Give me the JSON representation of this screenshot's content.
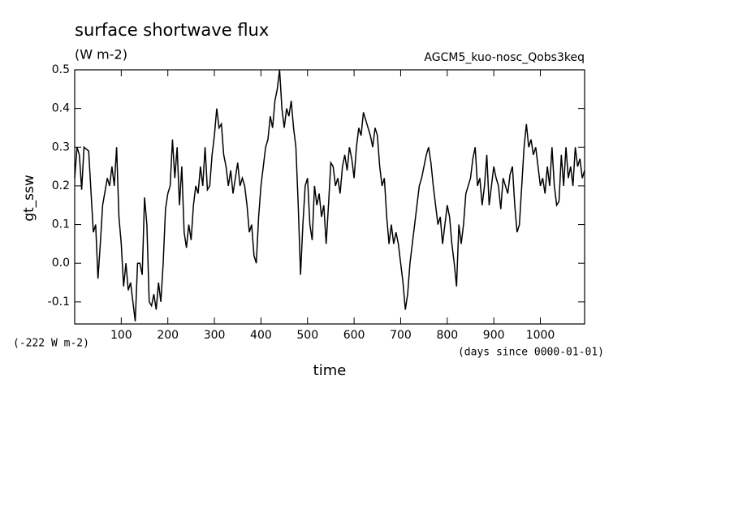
{
  "chart_data": {
    "type": "line",
    "title": "surface shortwave flux",
    "subtitle": "(W m-2)",
    "annotation": "AGCM5_kuo-nosc_Qobs3keq",
    "ylabel": "gt_ssw",
    "xlabel": "time",
    "offset_label": "(-222 W m-2)",
    "x_units_label": "(days since 0000-01-01)",
    "color": "#000000",
    "xlim": [
      0,
      1095
    ],
    "ylim": [
      -0.157,
      0.5
    ],
    "xticks": [
      100,
      200,
      300,
      400,
      500,
      600,
      700,
      800,
      900,
      1000
    ],
    "yticks": [
      -0.1,
      {
        "value": 0,
        "label": "0.0"
      },
      0.1,
      0.2,
      0.3,
      0.4,
      0.5
    ],
    "x": [
      0,
      5,
      10,
      15,
      20,
      30,
      40,
      45,
      50,
      55,
      60,
      70,
      75,
      80,
      85,
      90,
      95,
      100,
      105,
      110,
      115,
      120,
      125,
      130,
      135,
      140,
      145,
      150,
      155,
      160,
      165,
      170,
      175,
      180,
      185,
      190,
      195,
      200,
      205,
      210,
      215,
      220,
      225,
      230,
      235,
      240,
      245,
      250,
      255,
      260,
      265,
      270,
      275,
      280,
      285,
      290,
      295,
      300,
      305,
      310,
      315,
      320,
      325,
      330,
      335,
      340,
      345,
      350,
      355,
      360,
      365,
      370,
      375,
      380,
      385,
      390,
      395,
      400,
      405,
      410,
      415,
      420,
      425,
      430,
      435,
      440,
      445,
      450,
      455,
      460,
      465,
      470,
      475,
      480,
      485,
      490,
      495,
      500,
      505,
      510,
      515,
      520,
      525,
      530,
      535,
      540,
      545,
      550,
      555,
      560,
      565,
      570,
      575,
      580,
      585,
      590,
      595,
      600,
      605,
      610,
      615,
      620,
      625,
      630,
      635,
      640,
      645,
      650,
      655,
      660,
      665,
      670,
      675,
      680,
      685,
      690,
      695,
      700,
      705,
      710,
      715,
      720,
      725,
      730,
      735,
      740,
      745,
      750,
      755,
      760,
      765,
      770,
      775,
      780,
      785,
      790,
      795,
      800,
      805,
      810,
      815,
      820,
      825,
      830,
      835,
      840,
      845,
      850,
      855,
      860,
      865,
      870,
      875,
      880,
      885,
      890,
      895,
      900,
      905,
      910,
      915,
      920,
      925,
      930,
      935,
      940,
      945,
      950,
      955,
      960,
      965,
      970,
      975,
      980,
      985,
      990,
      995,
      1000,
      1005,
      1010,
      1015,
      1020,
      1025,
      1030,
      1035,
      1040,
      1045,
      1050,
      1055,
      1060,
      1065,
      1070,
      1075,
      1080,
      1085,
      1090,
      1095
    ],
    "values": [
      0.22,
      0.3,
      0.28,
      0.19,
      0.3,
      0.29,
      0.08,
      0.1,
      -0.04,
      0.05,
      0.15,
      0.22,
      0.2,
      0.25,
      0.2,
      0.3,
      0.12,
      0.05,
      -0.06,
      0.0,
      -0.07,
      -0.05,
      -0.1,
      -0.15,
      0.0,
      0.0,
      -0.03,
      0.17,
      0.1,
      -0.1,
      -0.11,
      -0.08,
      -0.12,
      -0.05,
      -0.1,
      0.0,
      0.14,
      0.18,
      0.2,
      0.32,
      0.22,
      0.3,
      0.15,
      0.25,
      0.08,
      0.04,
      0.1,
      0.06,
      0.15,
      0.2,
      0.18,
      0.25,
      0.2,
      0.3,
      0.19,
      0.2,
      0.28,
      0.33,
      0.4,
      0.35,
      0.36,
      0.28,
      0.25,
      0.2,
      0.24,
      0.18,
      0.22,
      0.26,
      0.2,
      0.22,
      0.2,
      0.15,
      0.08,
      0.1,
      0.02,
      0.0,
      0.12,
      0.2,
      0.25,
      0.3,
      0.32,
      0.38,
      0.35,
      0.42,
      0.45,
      0.5,
      0.4,
      0.35,
      0.4,
      0.38,
      0.42,
      0.35,
      0.3,
      0.15,
      -0.03,
      0.1,
      0.2,
      0.22,
      0.1,
      0.06,
      0.2,
      0.15,
      0.18,
      0.12,
      0.15,
      0.05,
      0.15,
      0.26,
      0.25,
      0.2,
      0.22,
      0.18,
      0.25,
      0.28,
      0.24,
      0.3,
      0.27,
      0.22,
      0.3,
      0.35,
      0.33,
      0.39,
      0.37,
      0.35,
      0.33,
      0.3,
      0.35,
      0.33,
      0.25,
      0.2,
      0.22,
      0.12,
      0.05,
      0.1,
      0.05,
      0.08,
      0.05,
      0.0,
      -0.05,
      -0.12,
      -0.08,
      0.0,
      0.05,
      0.1,
      0.15,
      0.2,
      0.22,
      0.25,
      0.28,
      0.3,
      0.26,
      0.2,
      0.15,
      0.1,
      0.12,
      0.05,
      0.1,
      0.15,
      0.12,
      0.05,
      0.0,
      -0.06,
      0.1,
      0.05,
      0.1,
      0.18,
      0.2,
      0.22,
      0.27,
      0.3,
      0.2,
      0.22,
      0.15,
      0.2,
      0.28,
      0.15,
      0.2,
      0.25,
      0.22,
      0.2,
      0.14,
      0.22,
      0.2,
      0.18,
      0.23,
      0.25,
      0.15,
      0.08,
      0.1,
      0.2,
      0.3,
      0.36,
      0.3,
      0.32,
      0.28,
      0.3,
      0.25,
      0.2,
      0.22,
      0.18,
      0.25,
      0.2,
      0.3,
      0.2,
      0.15,
      0.16,
      0.28,
      0.2,
      0.3,
      0.22,
      0.25,
      0.2,
      0.3,
      0.25,
      0.27,
      0.22,
      0.24
    ]
  }
}
